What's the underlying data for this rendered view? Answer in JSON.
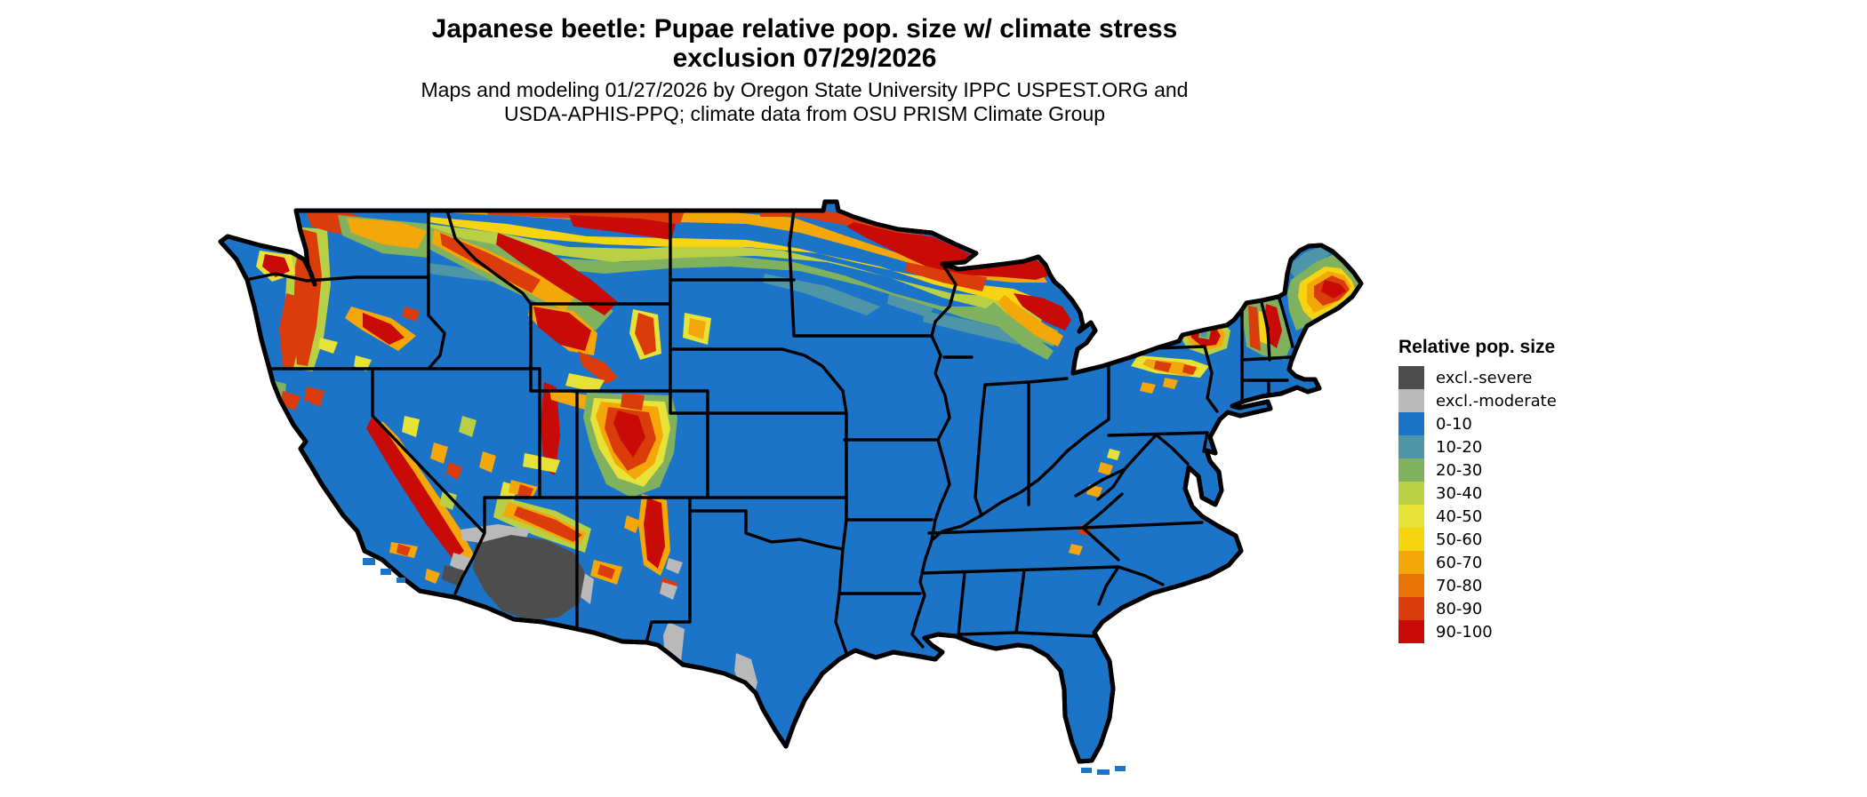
{
  "title": {
    "line1": "Japanese beetle: Pupae relative pop. size w/ climate stress",
    "line2": "exclusion 07/29/2026"
  },
  "subtitle": {
    "line1": "Maps and modeling 01/27/2026 by Oregon State University IPPC USPEST.ORG and",
    "line2": "USDA-APHIS-PPQ; climate data from OSU PRISM Climate Group"
  },
  "legend": {
    "title": "Relative pop. size",
    "items": [
      {
        "label": "excl.-severe",
        "color": "#4D4D4D"
      },
      {
        "label": "excl.-moderate",
        "color": "#B9B9B9"
      },
      {
        "label": "0-10",
        "color": "#1B74C8"
      },
      {
        "label": "10-20",
        "color": "#4E95A8"
      },
      {
        "label": "20-30",
        "color": "#7FB15F"
      },
      {
        "label": "30-40",
        "color": "#B9CF44"
      },
      {
        "label": "40-50",
        "color": "#E6E237"
      },
      {
        "label": "50-60",
        "color": "#F7D411"
      },
      {
        "label": "60-70",
        "color": "#F4A708"
      },
      {
        "label": "70-80",
        "color": "#EB7407"
      },
      {
        "label": "80-90",
        "color": "#DA3D0B"
      },
      {
        "label": "90-100",
        "color": "#C80B06"
      }
    ]
  },
  "map": {
    "type": "raster choropleth",
    "region": "Contiguous United States",
    "base_value_class": "0-10",
    "base_color": "#1B74C8",
    "state_border_color": "#000000",
    "background_color": "#FFFFFF",
    "high_stress_areas": "Northern tier (MT, ND, northern MN/WI/MI, northern New England/Maine, Adirondacks) and western mountain ranges show 30-100 values; desert Southwest (AZ/SE CA) excluded-severe; south TX patches excluded-moderate"
  }
}
